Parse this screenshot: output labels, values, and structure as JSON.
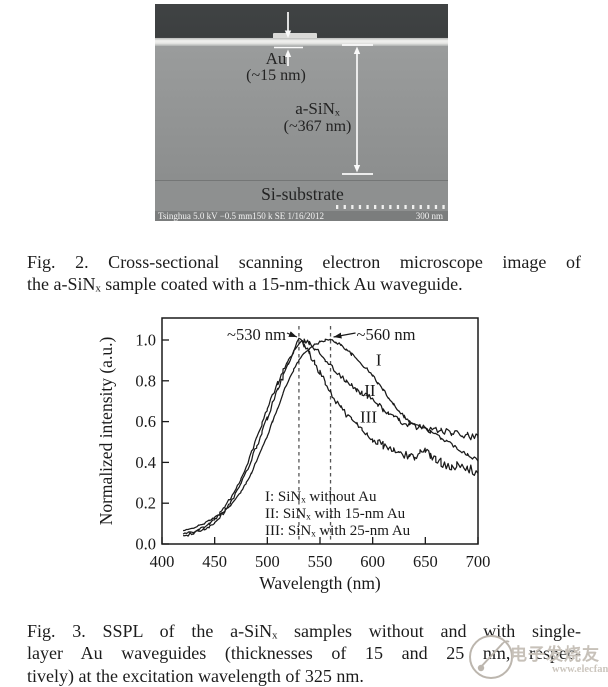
{
  "sem": {
    "labels": {
      "au_line1": "Au",
      "au_line2": "(~15 nm)",
      "sinx_line1": "a-SiNₓ",
      "sinx_line2": "(~367 nm)",
      "substrate": "Si-substrate",
      "status_left": "Tsinghua 5.0 kV −0.5 mm150 k SE 1/16/2012",
      "scale_bar": "300 nm"
    },
    "colors": {
      "vacuum": "#3e4142",
      "film": "#929494",
      "substrate": "#8e9090",
      "status_bar": "#7b7d7d",
      "au_layer": "#eeeeec",
      "annotation_white": "#fafafa",
      "label_text": "#232323"
    }
  },
  "fig2_caption": {
    "lines": [
      "Fig. 2.  Cross-sectional scanning electron microscope image of",
      "the a-SiNₓ sample coated with a 15-nm-thick Au waveguide."
    ]
  },
  "fig3_caption": {
    "lines": [
      "Fig. 3.  SSPL of the a-SiNₓ samples without and with single-",
      "layer Au waveguides (thicknesses of 15 and 25 nm, respec-",
      "tively) at the excitation wavelength of 325 nm."
    ]
  },
  "watermark": {
    "brand": "电子发烧友",
    "site": "www.elecfans.com"
  },
  "chart_data": {
    "type": "line",
    "title": "",
    "xlabel": "Wavelength (nm)",
    "ylabel": "Normalized intensity (a.u.)",
    "xlim": [
      400,
      700
    ],
    "ylim": [
      0.0,
      1.1
    ],
    "xticks": [
      400,
      450,
      500,
      550,
      600,
      650,
      700
    ],
    "yticks": [
      "0.0",
      "0.2",
      "0.4",
      "0.6",
      "0.8",
      "1.0"
    ],
    "grid": false,
    "legend_position": "inside lower center",
    "line_color": "#1a1a1a",
    "dashed_guides_nm": [
      530,
      560
    ],
    "annotations": [
      {
        "text": "~530 nm",
        "target_nm": 530,
        "side": "left"
      },
      {
        "text": "~560 nm",
        "target_nm": 560,
        "side": "right"
      }
    ],
    "legend_lines": [
      "I: SiNₓ without Au",
      "II: SiNₓ with 15-nm Au",
      "III: SiNₓ with 25-nm Au"
    ],
    "x_nm": [
      420,
      425,
      430,
      435,
      440,
      445,
      450,
      455,
      460,
      465,
      470,
      475,
      480,
      485,
      490,
      495,
      500,
      505,
      510,
      515,
      520,
      525,
      530,
      535,
      540,
      545,
      550,
      555,
      560,
      565,
      570,
      575,
      580,
      585,
      590,
      595,
      600,
      605,
      610,
      615,
      620,
      625,
      630,
      635,
      640,
      645,
      650,
      655,
      660,
      665,
      670,
      675,
      680,
      685,
      690,
      695,
      700
    ],
    "series": [
      {
        "name": "I",
        "description": "SiNx without Au, peak ~560 nm",
        "noise": 0.007,
        "values": [
          0.065,
          0.07,
          0.08,
          0.09,
          0.1,
          0.115,
          0.13,
          0.145,
          0.165,
          0.19,
          0.22,
          0.255,
          0.3,
          0.35,
          0.41,
          0.47,
          0.53,
          0.6,
          0.67,
          0.74,
          0.8,
          0.855,
          0.9,
          0.935,
          0.96,
          0.975,
          0.99,
          1.0,
          1.0,
          0.99,
          0.975,
          0.955,
          0.93,
          0.905,
          0.88,
          0.855,
          0.825,
          0.79,
          0.755,
          0.72,
          0.685,
          0.655,
          0.625,
          0.6,
          0.585,
          0.575,
          0.565,
          0.55,
          0.535,
          0.52,
          0.505,
          0.49,
          0.47,
          0.455,
          0.44,
          0.425,
          0.41
        ]
      },
      {
        "name": "II",
        "description": "SiNx with 15-nm Au, peak ~530 nm",
        "noise": 0.013,
        "values": [
          0.05,
          0.055,
          0.062,
          0.072,
          0.085,
          0.1,
          0.12,
          0.15,
          0.185,
          0.225,
          0.27,
          0.32,
          0.38,
          0.45,
          0.52,
          0.59,
          0.66,
          0.73,
          0.79,
          0.85,
          0.9,
          0.945,
          0.975,
          0.995,
          0.985,
          0.96,
          0.935,
          0.905,
          0.875,
          0.845,
          0.82,
          0.795,
          0.775,
          0.755,
          0.74,
          0.725,
          0.71,
          0.685,
          0.66,
          0.64,
          0.62,
          0.605,
          0.595,
          0.585,
          0.578,
          0.572,
          0.57,
          0.565,
          0.56,
          0.555,
          0.55,
          0.545,
          0.54,
          0.535,
          0.53,
          0.525,
          0.52
        ]
      },
      {
        "name": "III",
        "description": "SiNx with 25-nm Au, peak ~530 nm",
        "noise": 0.018,
        "values": [
          0.04,
          0.045,
          0.052,
          0.06,
          0.072,
          0.088,
          0.108,
          0.135,
          0.165,
          0.2,
          0.245,
          0.295,
          0.35,
          0.415,
          0.48,
          0.55,
          0.62,
          0.69,
          0.755,
          0.82,
          0.88,
          0.94,
          1.0,
          0.975,
          0.93,
          0.885,
          0.84,
          0.79,
          0.745,
          0.7,
          0.665,
          0.635,
          0.61,
          0.585,
          0.56,
          0.535,
          0.515,
          0.5,
          0.485,
          0.47,
          0.455,
          0.445,
          0.435,
          0.43,
          0.43,
          0.445,
          0.47,
          0.43,
          0.41,
          0.4,
          0.39,
          0.385,
          0.38,
          0.375,
          0.37,
          0.36,
          0.35
        ]
      }
    ],
    "series_label_positions": [
      {
        "name": "I",
        "nm": 603,
        "value": 0.875
      },
      {
        "name": "II",
        "nm": 592,
        "value": 0.725
      },
      {
        "name": "III",
        "nm": 588,
        "value": 0.595
      }
    ]
  }
}
